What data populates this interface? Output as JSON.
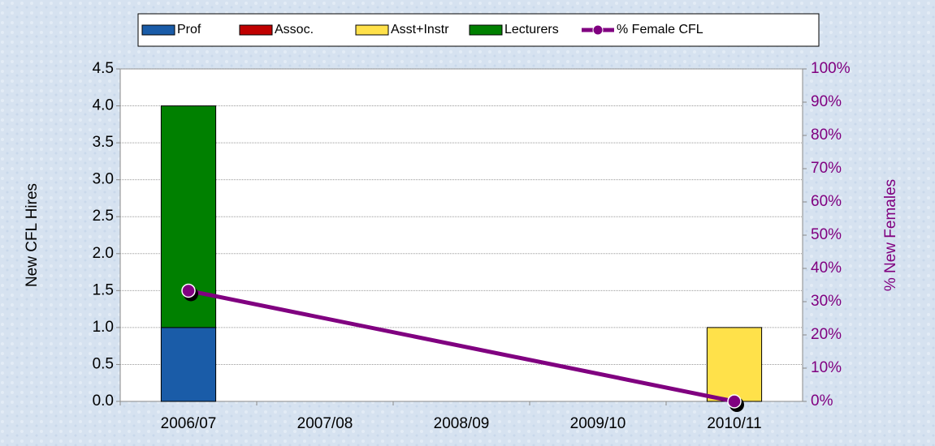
{
  "chart_data": {
    "type": "stacked_bar_line",
    "categories": [
      "2006/07",
      "2007/08",
      "2008/09",
      "2009/10",
      "2010/11"
    ],
    "series": [
      {
        "name": "Prof",
        "color": "#1a5ca8",
        "values": [
          1,
          0,
          0,
          0,
          0
        ]
      },
      {
        "name": "Assoc.",
        "color": "#c00000",
        "values": [
          0,
          0,
          0,
          0,
          0
        ]
      },
      {
        "name": "Asst+Instr",
        "color": "#ffe14a",
        "values": [
          0,
          0,
          0,
          0,
          1
        ]
      },
      {
        "name": "Lecturers",
        "color": "#008000",
        "values": [
          3,
          0,
          0,
          0,
          0
        ]
      },
      {
        "name": "% Female CFL",
        "color": "#800080",
        "type": "line",
        "axis": "y2",
        "x": [
          "2006/07",
          "2010/11"
        ],
        "values": [
          33.3,
          0
        ]
      }
    ],
    "ylabel": "New CFL Hires",
    "y2label": "% New Females",
    "ylim": [
      0,
      4.5
    ],
    "yticks": [
      {
        "value": 0,
        "label": "0.0"
      },
      {
        "value": 0.5,
        "label": "0.5"
      },
      {
        "value": 1,
        "label": "1.0"
      },
      {
        "value": 1.5,
        "label": "1.5"
      },
      {
        "value": 2,
        "label": "2.0"
      },
      {
        "value": 2.5,
        "label": "2.5"
      },
      {
        "value": 3,
        "label": "3.0"
      },
      {
        "value": 3.5,
        "label": "3.5"
      },
      {
        "value": 4,
        "label": "4.0"
      },
      {
        "value": 4.5,
        "label": "4.5"
      }
    ],
    "y2lim": [
      0,
      100
    ],
    "y2ticks": [
      {
        "value": 0,
        "label": "0%"
      },
      {
        "value": 10,
        "label": "10%"
      },
      {
        "value": 20,
        "label": "20%"
      },
      {
        "value": 30,
        "label": "30%"
      },
      {
        "value": 40,
        "label": "40%"
      },
      {
        "value": 50,
        "label": "50%"
      },
      {
        "value": 60,
        "label": "60%"
      },
      {
        "value": 70,
        "label": "70%"
      },
      {
        "value": 80,
        "label": "80%"
      },
      {
        "value": 90,
        "label": "90%"
      },
      {
        "value": 100,
        "label": "100%"
      }
    ],
    "grid": true,
    "legend": "top"
  }
}
